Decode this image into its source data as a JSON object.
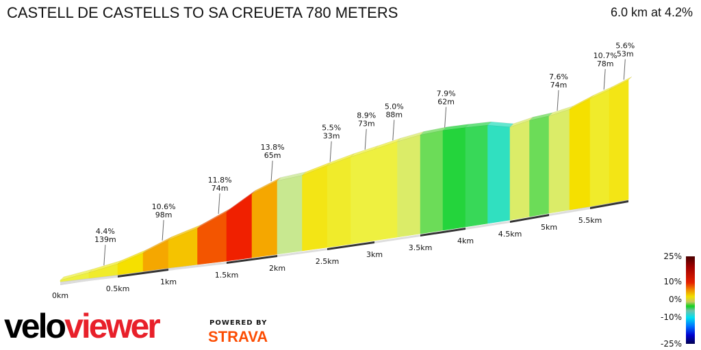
{
  "title": "CASTELL DE CASTELLS TO SA CREUETA 780 METERS",
  "summary": "6.0 km at 4.2%",
  "branding": {
    "logo_part1": "velo",
    "logo_part2": "viewer",
    "powered": "POWERED BY",
    "strava": "STRAVA"
  },
  "legend": {
    "labels": [
      "25%",
      "10%",
      "0%",
      "-10%",
      "-25%"
    ]
  },
  "chart_data": {
    "type": "area",
    "title": "CASTELL DE CASTELLS TO SA CREUETA 780 METERS",
    "xlabel": "",
    "ylabel": "",
    "x_ticks": [
      "0km",
      "0.5km",
      "1km",
      "1.5km",
      "2km",
      "2.5km",
      "3km",
      "3.5km",
      "4km",
      "4.5km",
      "5km",
      "5.5km"
    ],
    "segment_length_km": 0.25,
    "gradients_pct": [
      4,
      5,
      7,
      9,
      8,
      12,
      14,
      9,
      2,
      6,
      5,
      4,
      4,
      3,
      1,
      -0.5,
      -1,
      -5,
      3,
      1,
      3,
      7,
      5,
      6
    ],
    "annotations": [
      {
        "km": 0.38,
        "grade": "4.4%",
        "length": "139m"
      },
      {
        "km": 0.94,
        "grade": "10.6%",
        "length": "98m"
      },
      {
        "km": 1.43,
        "grade": "11.8%",
        "length": "74m"
      },
      {
        "km": 1.94,
        "grade": "13.8%",
        "length": "65m"
      },
      {
        "km": 2.53,
        "grade": "5.5%",
        "length": "33m"
      },
      {
        "km": 2.9,
        "grade": "8.9%",
        "length": "73m"
      },
      {
        "km": 3.2,
        "grade": "5.0%",
        "length": "88m"
      },
      {
        "km": 3.77,
        "grade": "7.9%",
        "length": "62m"
      },
      {
        "km": 5.1,
        "grade": "7.6%",
        "length": "74m"
      },
      {
        "km": 5.68,
        "grade": "10.7%",
        "length": "78m"
      },
      {
        "km": 5.94,
        "grade": "5.6%",
        "length": "53m"
      }
    ],
    "color_scale_range_pct": [
      -25,
      25
    ]
  }
}
